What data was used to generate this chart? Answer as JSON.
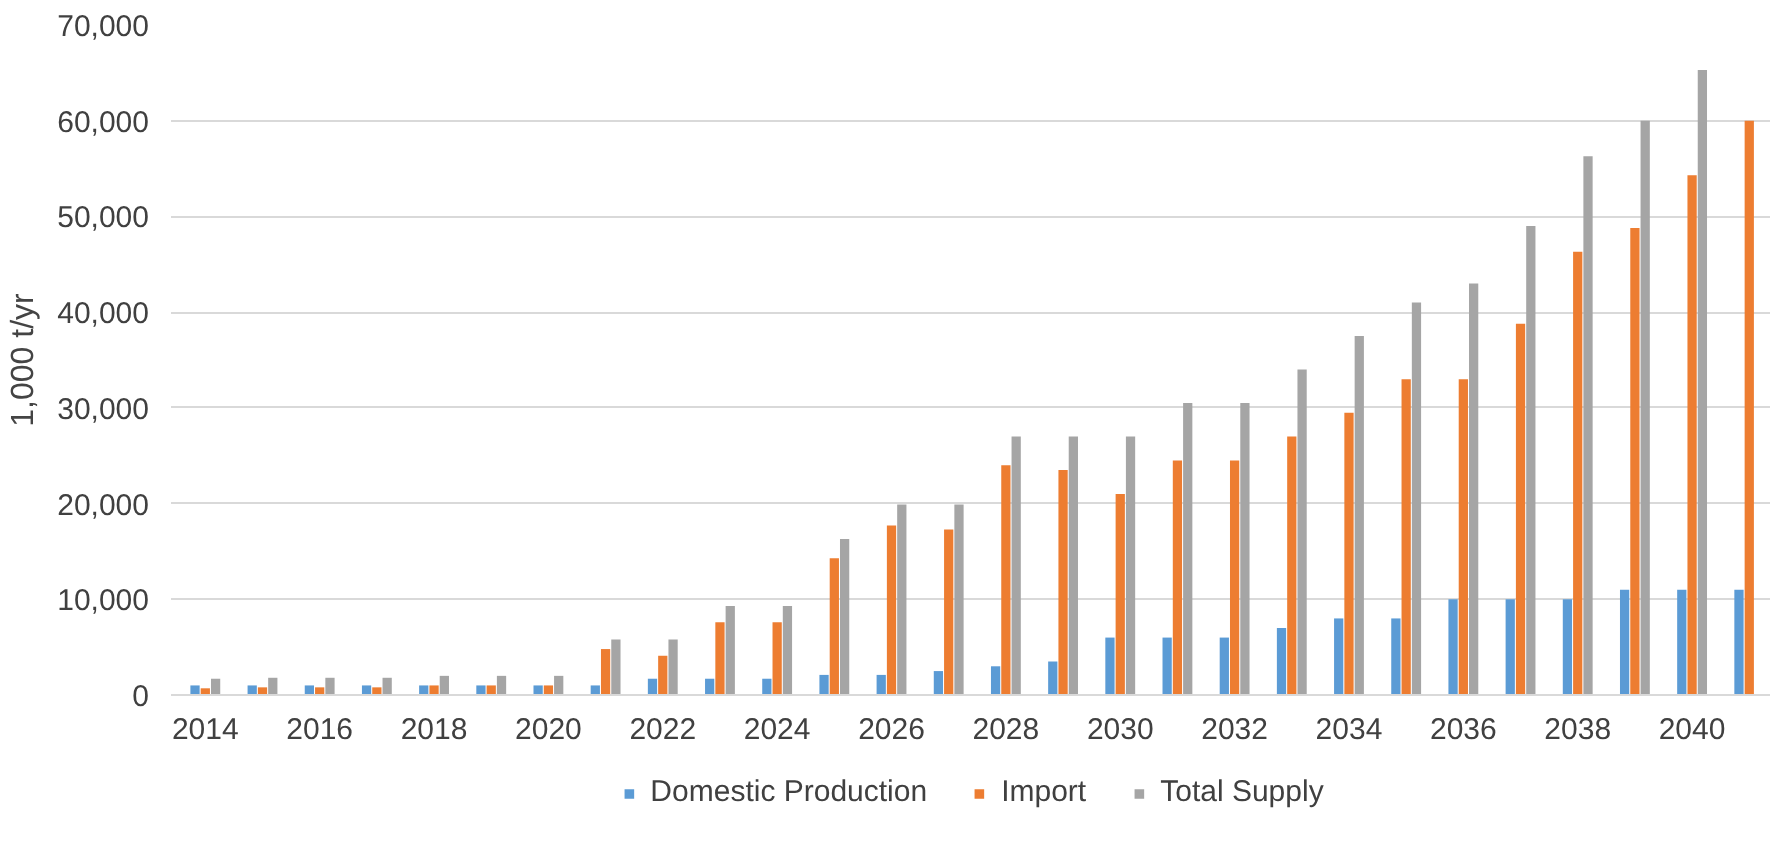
{
  "chart_data": {
    "type": "bar",
    "ylabel": "1,000 t/yr",
    "categories": [
      "2014",
      null,
      "2016",
      null,
      "2018",
      null,
      "2020",
      null,
      "2022",
      null,
      "2024",
      null,
      "2026",
      null,
      "2028",
      null,
      "2030",
      null,
      "2032",
      null,
      "2034",
      null,
      "2036",
      null,
      "2038",
      null,
      "2040",
      null
    ],
    "series": [
      {
        "name": "Domestic Production",
        "color": "#5b9bd5",
        "values": [
          1000,
          1000,
          1000,
          1000,
          1000,
          1000,
          1000,
          1000,
          1700,
          1700,
          1700,
          2100,
          2100,
          2500,
          3000,
          3500,
          6000,
          6000,
          6000,
          7000,
          8000,
          8000,
          10000,
          10000,
          10000,
          11000,
          11000,
          11000
        ]
      },
      {
        "name": "Import",
        "color": "#ed7d31",
        "values": [
          700,
          800,
          800,
          800,
          1000,
          1000,
          1000,
          4800,
          4100,
          7600,
          7600,
          14300,
          17700,
          17300,
          24000,
          23500,
          21000,
          24500,
          24500,
          27000,
          29500,
          33000,
          33000,
          38800,
          46300,
          48800,
          54300,
          60000
        ]
      },
      {
        "name": "Total Supply",
        "color": "#a5a5a5",
        "values": [
          1700,
          1800,
          1800,
          1800,
          2000,
          2000,
          2000,
          5800,
          5800,
          9300,
          9300,
          16300,
          19900,
          19900,
          27000,
          27000,
          27000,
          30500,
          30500,
          34000,
          37500,
          41000,
          43000,
          49000,
          56300,
          60000,
          65300,
          null
        ]
      }
    ],
    "ylim": [
      0,
      70000
    ],
    "yticks": [
      {
        "value": 0,
        "label": "0"
      },
      {
        "value": 10000,
        "label": "10,000"
      },
      {
        "value": 20000,
        "label": "20,000"
      },
      {
        "value": 30000,
        "label": "30,000"
      },
      {
        "value": 40000,
        "label": "40,000"
      },
      {
        "value": 50000,
        "label": "50,000"
      },
      {
        "value": 60000,
        "label": "60,000"
      },
      {
        "value": 70000,
        "label": "70,000"
      }
    ],
    "grid": "y",
    "legend": "bottom"
  }
}
